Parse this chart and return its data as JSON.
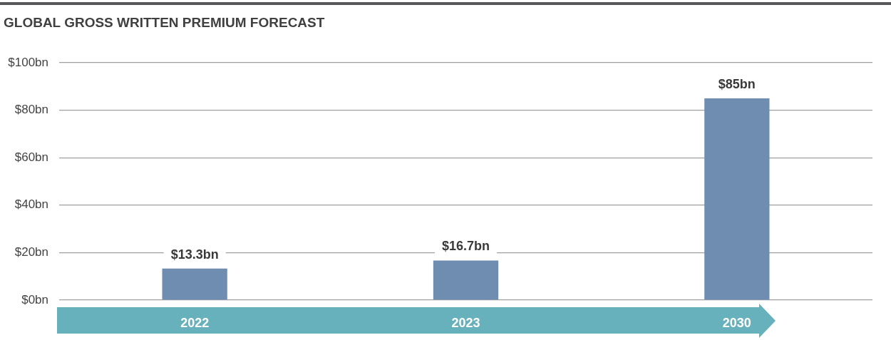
{
  "chart_data": {
    "type": "bar",
    "title": "GLOBAL GROSS WRITTEN PREMIUM FORECAST",
    "categories": [
      "2022",
      "2023",
      "2030"
    ],
    "values": [
      13.3,
      16.7,
      85
    ],
    "color": "#6f8db1",
    "value_labels": [
      "$13.3bn",
      "$16.7bn",
      "$85bn"
    ],
    "ylim": [
      0,
      100
    ],
    "yticks": [
      {
        "value": 0,
        "label": "$0bn"
      },
      {
        "value": 20,
        "label": "$20bn"
      },
      {
        "value": 40,
        "label": "$40bn"
      },
      {
        "value": 60,
        "label": "$60bn"
      },
      {
        "value": 80,
        "label": "$80bn"
      },
      {
        "value": 100,
        "label": "$100bn"
      }
    ],
    "grid": "y",
    "legend": false
  }
}
